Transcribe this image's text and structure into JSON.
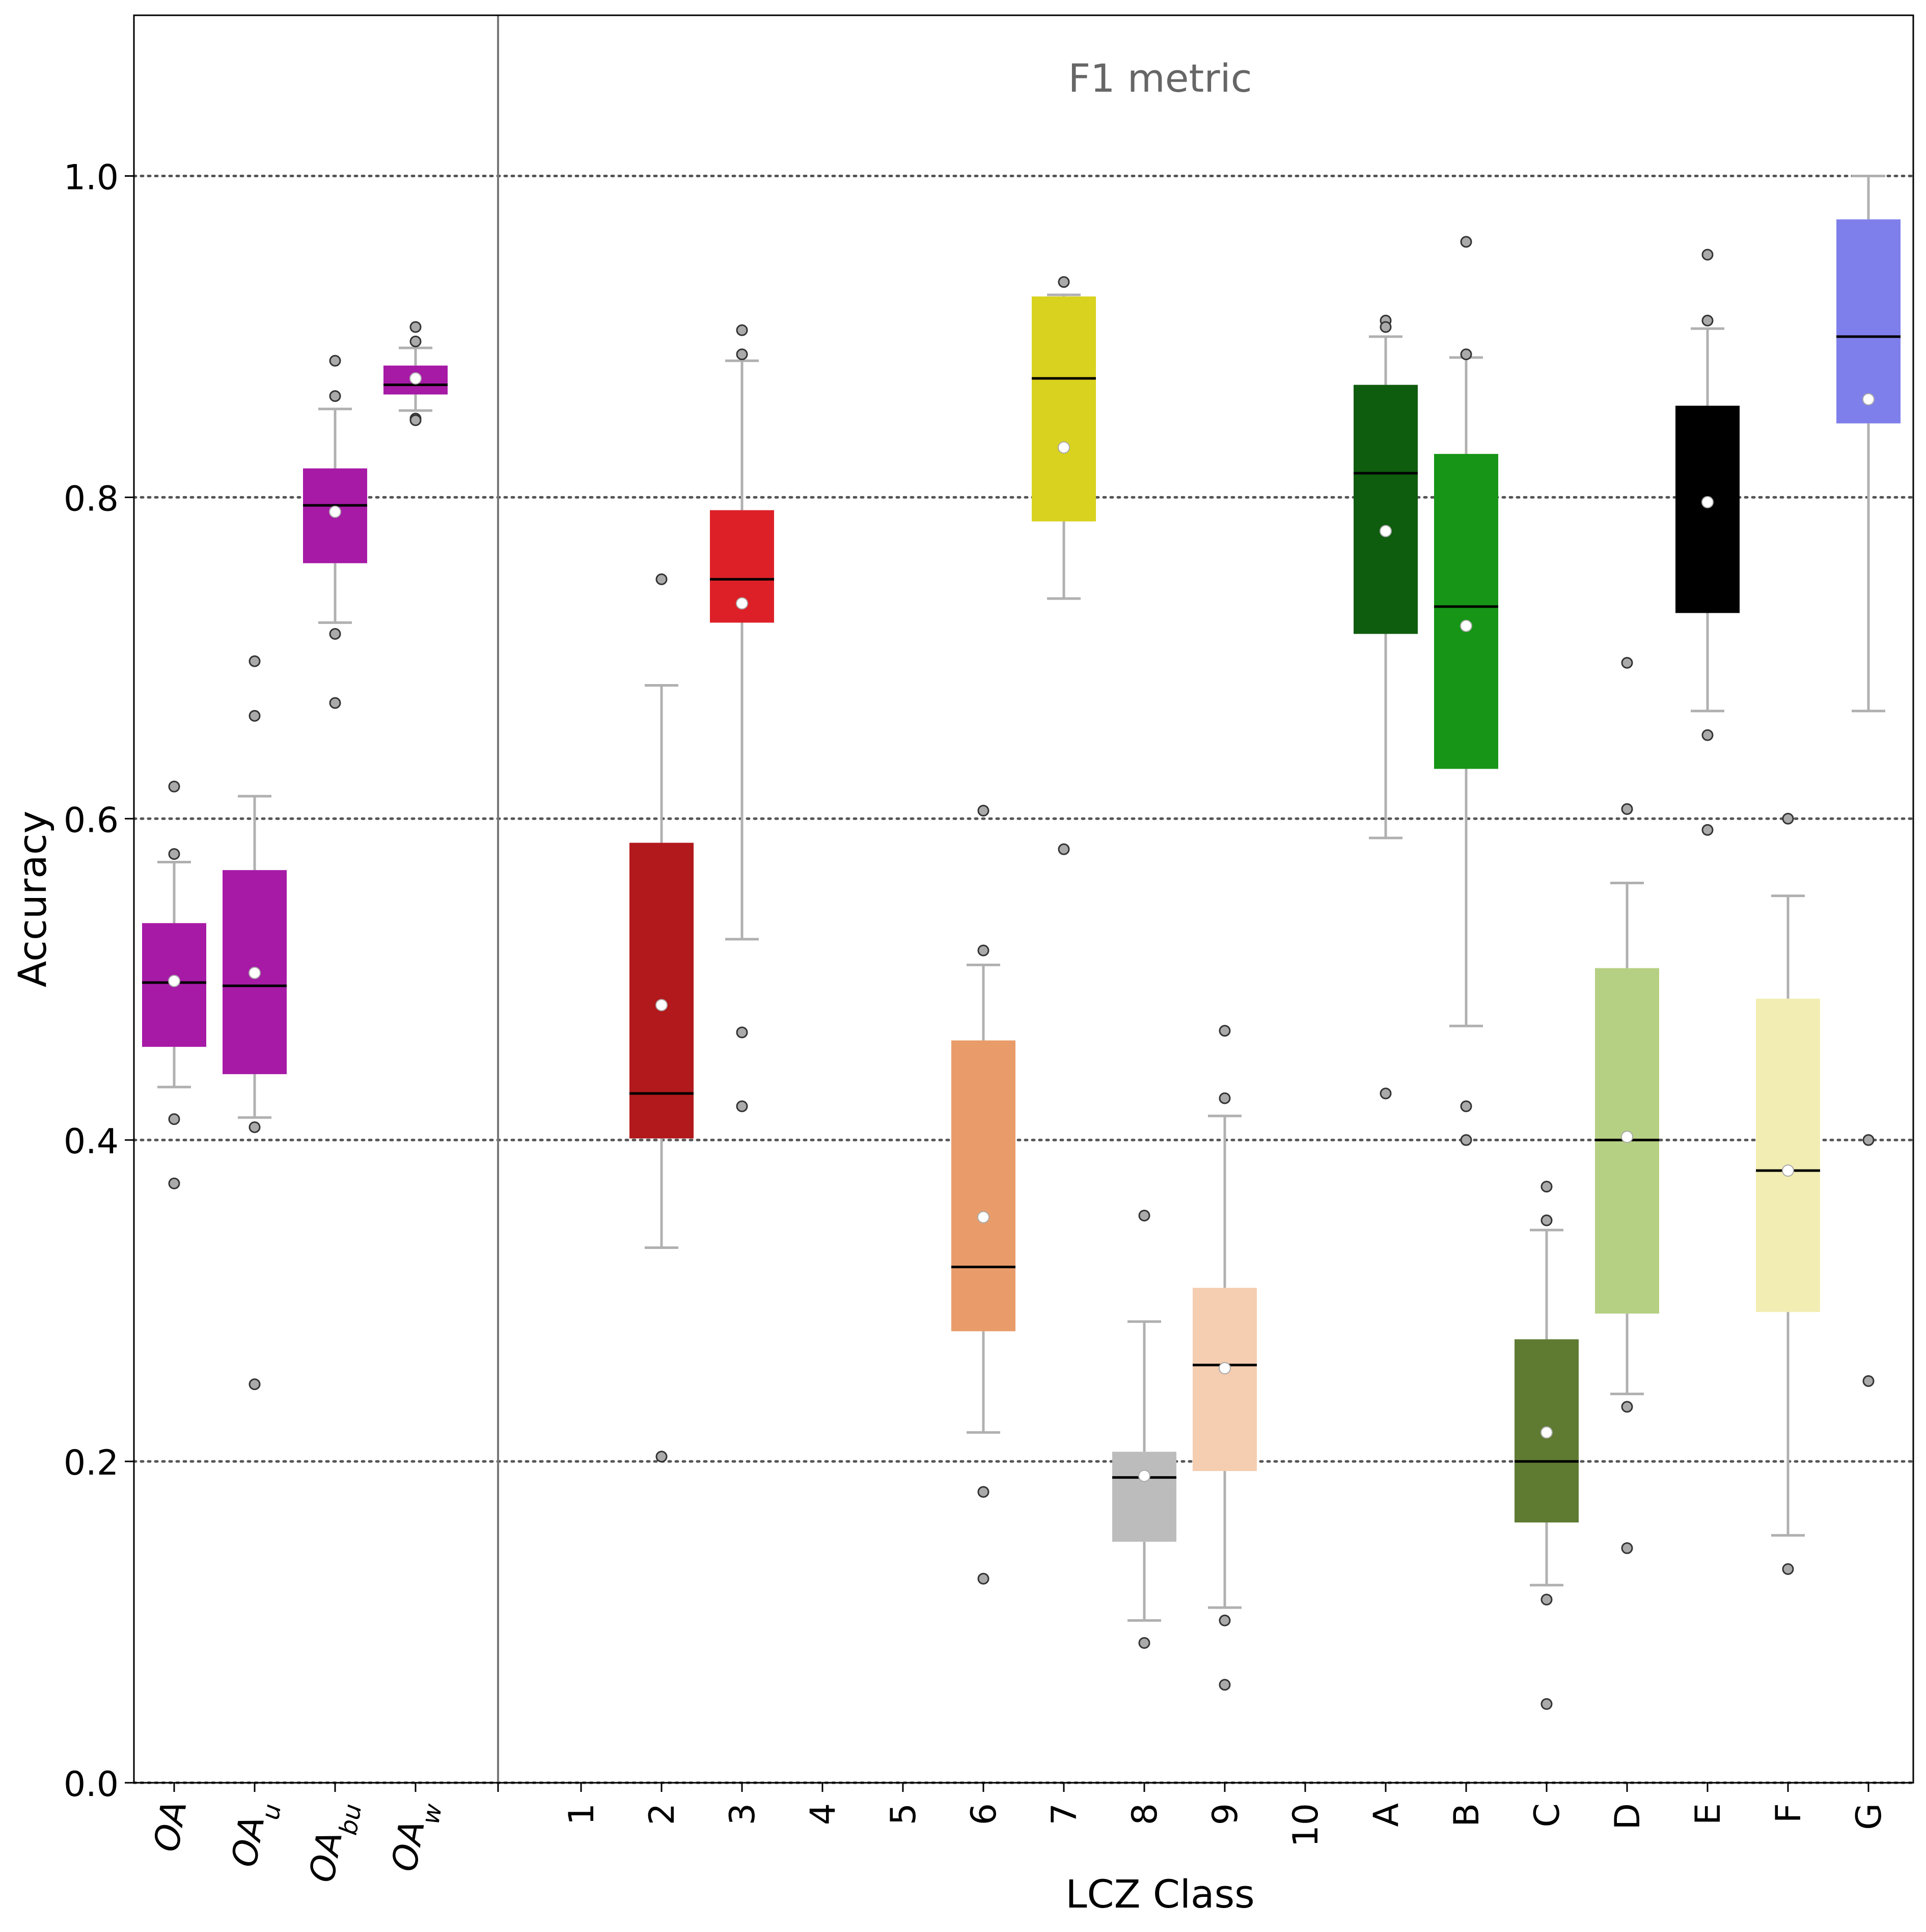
{
  "chart_data": {
    "type": "box",
    "title": "F1 metric",
    "xlabel": "LCZ Class",
    "ylabel": "Accuracy",
    "ylim": [
      0.0,
      1.1
    ],
    "yticks": [
      "0.0",
      "0.2",
      "0.4",
      "0.6",
      "0.8",
      "1.0"
    ],
    "grid": "horizontal dotted at 0.2, 0.4, 0.6, 0.8, 1.0",
    "tick_labels_rotation": 90,
    "oa_categories": [
      {
        "label": "OA",
        "sub": "",
        "color": "#a61aa6",
        "q1": 0.458,
        "median": 0.498,
        "q3": 0.535,
        "mean": 0.499,
        "whisker_low": 0.433,
        "whisker_high": 0.573,
        "outliers": [
          0.62,
          0.578,
          0.413,
          0.373
        ]
      },
      {
        "label": "OA",
        "sub": "u",
        "color": "#a61aa6",
        "q1": 0.441,
        "median": 0.496,
        "q3": 0.568,
        "mean": 0.504,
        "whisker_low": 0.414,
        "whisker_high": 0.614,
        "outliers": [
          0.698,
          0.664,
          0.408,
          0.248
        ]
      },
      {
        "label": "OA",
        "sub": "bu",
        "color": "#a61aa6",
        "q1": 0.759,
        "median": 0.795,
        "q3": 0.818,
        "mean": 0.791,
        "whisker_low": 0.722,
        "whisker_high": 0.855,
        "outliers": [
          0.885,
          0.863,
          0.715,
          0.672
        ]
      },
      {
        "label": "OA",
        "sub": "w",
        "color": "#a61aa6",
        "q1": 0.864,
        "median": 0.87,
        "q3": 0.882,
        "mean": 0.874,
        "whisker_low": 0.854,
        "whisker_high": 0.893,
        "outliers": [
          0.906,
          0.897,
          0.849,
          0.848
        ]
      }
    ],
    "lcz_categories": [
      {
        "label": "1"
      },
      {
        "label": "2",
        "color": "#b2191c",
        "q1": 0.401,
        "median": 0.429,
        "q3": 0.585,
        "mean": 0.484,
        "whisker_low": 0.333,
        "whisker_high": 0.683,
        "outliers": [
          0.749,
          0.203
        ]
      },
      {
        "label": "3",
        "color": "#dd2027",
        "q1": 0.722,
        "median": 0.749,
        "q3": 0.792,
        "mean": 0.734,
        "whisker_low": 0.525,
        "whisker_high": 0.885,
        "outliers": [
          0.904,
          0.889,
          0.467,
          0.421
        ]
      },
      {
        "label": "4"
      },
      {
        "label": "5"
      },
      {
        "label": "6",
        "color": "#e99c6a",
        "q1": 0.281,
        "median": 0.321,
        "q3": 0.462,
        "mean": 0.352,
        "whisker_low": 0.218,
        "whisker_high": 0.509,
        "outliers": [
          0.605,
          0.518,
          0.181,
          0.127
        ]
      },
      {
        "label": "7",
        "color": "#d9d21e",
        "q1": 0.785,
        "median": 0.874,
        "q3": 0.925,
        "mean": 0.831,
        "whisker_low": 0.737,
        "whisker_high": 0.926,
        "outliers": [
          0.934,
          0.581
        ]
      },
      {
        "label": "8",
        "color": "#bcbcbc",
        "q1": 0.15,
        "median": 0.19,
        "q3": 0.206,
        "mean": 0.191,
        "whisker_low": 0.101,
        "whisker_high": 0.287,
        "outliers": [
          0.353,
          0.087
        ]
      },
      {
        "label": "9",
        "color": "#f5cdb0",
        "q1": 0.194,
        "median": 0.26,
        "q3": 0.308,
        "mean": 0.258,
        "whisker_low": 0.109,
        "whisker_high": 0.415,
        "outliers": [
          0.468,
          0.426,
          0.101,
          0.061
        ]
      },
      {
        "label": "10"
      },
      {
        "label": "A",
        "color": "#0e5c0e",
        "q1": 0.715,
        "median": 0.815,
        "q3": 0.87,
        "mean": 0.779,
        "whisker_low": 0.588,
        "whisker_high": 0.9,
        "outliers": [
          0.91,
          0.906,
          0.429
        ]
      },
      {
        "label": "B",
        "color": "#169516",
        "q1": 0.631,
        "median": 0.732,
        "q3": 0.827,
        "mean": 0.72,
        "whisker_low": 0.471,
        "whisker_high": 0.887,
        "outliers": [
          0.959,
          0.889,
          0.421,
          0.4
        ]
      },
      {
        "label": "C",
        "color": "#5f7b32",
        "q1": 0.162,
        "median": 0.2,
        "q3": 0.276,
        "mean": 0.218,
        "whisker_low": 0.123,
        "whisker_high": 0.344,
        "outliers": [
          0.371,
          0.35,
          0.114,
          0.049
        ]
      },
      {
        "label": "D",
        "color": "#b6d083",
        "q1": 0.292,
        "median": 0.4,
        "q3": 0.507,
        "mean": 0.402,
        "whisker_low": 0.242,
        "whisker_high": 0.56,
        "outliers": [
          0.697,
          0.606,
          0.234,
          0.146
        ]
      },
      {
        "label": "E",
        "color": "#000000",
        "q1": 0.728,
        "median": 0.822,
        "q3": 0.857,
        "mean": 0.797,
        "whisker_low": 0.667,
        "whisker_high": 0.905,
        "outliers": [
          0.951,
          0.91,
          0.652,
          0.593
        ]
      },
      {
        "label": "F",
        "color": "#f2eeb3",
        "q1": 0.293,
        "median": 0.381,
        "q3": 0.488,
        "mean": 0.381,
        "whisker_low": 0.154,
        "whisker_high": 0.552,
        "outliers": [
          0.6,
          0.133
        ]
      },
      {
        "label": "G",
        "color": "#7f7feb",
        "q1": 0.846,
        "median": 0.9,
        "q3": 0.973,
        "mean": 0.861,
        "whisker_low": 0.667,
        "whisker_high": 1.0,
        "outliers": [
          0.4,
          0.25
        ]
      }
    ]
  }
}
